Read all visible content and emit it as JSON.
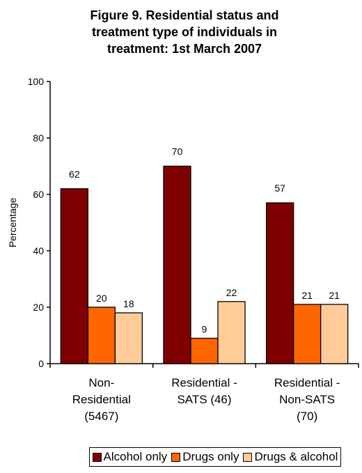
{
  "chart_data": {
    "type": "bar",
    "title_lines": [
      "Figure 9. Residential status and",
      "treatment type of individuals in",
      "treatment: 1st March 2007"
    ],
    "ylabel": "Percentage",
    "xlabel": "",
    "ylim": [
      0,
      100
    ],
    "yticks": [
      0,
      20,
      40,
      60,
      80,
      100
    ],
    "categories": [
      [
        "Non-",
        "Residential",
        "(5467)"
      ],
      [
        "Residential -",
        "SATS (46)"
      ],
      [
        "Residential -",
        "Non-SATS",
        "(70)"
      ]
    ],
    "series": [
      {
        "name": "Alcohol only",
        "color": "#7f0000",
        "values": [
          62,
          70,
          57
        ]
      },
      {
        "name": "Drugs only",
        "color": "#ff6600",
        "values": [
          20,
          9,
          21
        ]
      },
      {
        "name": "Drugs & alcohol",
        "color": "#ffcc99",
        "values": [
          18,
          22,
          21
        ]
      }
    ],
    "legend_position": "bottom",
    "grid": false
  }
}
